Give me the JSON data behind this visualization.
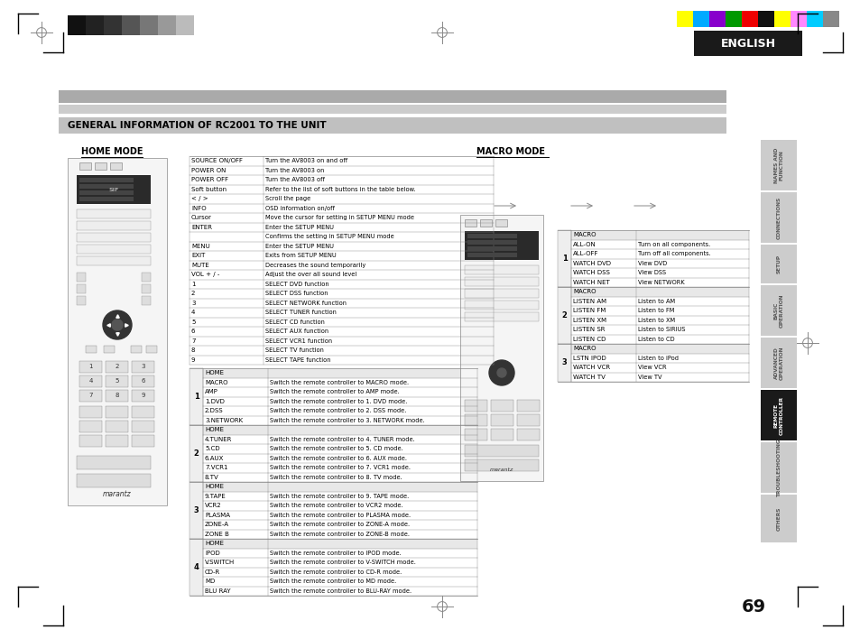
{
  "page_bg": "#ffffff",
  "title_text": "GENERAL INFORMATION OF RC2001 TO THE UNIT",
  "english_text": "ENGLISH",
  "english_text_color": "#ffffff",
  "english_box_color": "#1a1a1a",
  "page_number": "69",
  "tabs": [
    {
      "label": "NAMES AND\nFUNCTION",
      "active": false
    },
    {
      "label": "CONNECTIONS",
      "active": false
    },
    {
      "label": "SETUP",
      "active": false
    },
    {
      "label": "BASIC\nOPERATION",
      "active": false
    },
    {
      "label": "ADVANCED\nOPERATION",
      "active": false
    },
    {
      "label": "REMOTE\nCONTROLLER",
      "active": true
    },
    {
      "label": "TROUBLESHOOTING",
      "active": false
    },
    {
      "label": "OTHERS",
      "active": false
    }
  ],
  "tab_active_bg": "#1a1a1a",
  "tab_inactive_bg": "#cccccc",
  "tab_active_text": "#ffffff",
  "tab_inactive_text": "#555555",
  "color_strip_top_right": [
    "#ffff00",
    "#00aaff",
    "#8800cc",
    "#009900",
    "#ee0000",
    "#111111",
    "#ffff00",
    "#ff88ff",
    "#00ccff",
    "#888888"
  ],
  "color_strip_top_left": [
    "#111111",
    "#222222",
    "#333333",
    "#555555",
    "#777777",
    "#999999",
    "#bbbbbb",
    "#ffffff"
  ],
  "home_mode_label": "HOME MODE",
  "macro_mode_label": "MACRO MODE",
  "home_table_rows": [
    [
      "SOURCE ON/OFF",
      "Turn the AV8003 on and off"
    ],
    [
      "POWER ON",
      "Turn the AV8003 on"
    ],
    [
      "POWER OFF",
      "Turn the AV8003 off"
    ],
    [
      "Soft button",
      "Refer to the list of soft buttons in the table below."
    ],
    [
      "< / >",
      "Scroll the page"
    ],
    [
      "INFO",
      "OSD information on/off"
    ],
    [
      "Cursor",
      "Move the cursor for setting in SETUP MENU mode"
    ],
    [
      "ENTER",
      "Enter the SETUP MENU"
    ],
    [
      "",
      "Confirms the setting in SETUP MENU mode"
    ],
    [
      "MENU",
      "Enter the SETUP MENU"
    ],
    [
      "EXIT",
      "Exits from SETUP MENU"
    ],
    [
      "MUTE",
      "Decreases the sound temporarily"
    ],
    [
      "VOL + / -",
      "Adjust the over all sound level"
    ],
    [
      "1",
      "SELECT DVD function"
    ],
    [
      "2",
      "SELECT DSS function"
    ],
    [
      "3",
      "SELECT NETWORK function"
    ],
    [
      "4",
      "SELECT TUNER function"
    ],
    [
      "5",
      "SELECT CD function"
    ],
    [
      "6",
      "SELECT AUX function"
    ],
    [
      "7",
      "SELECT VCR1 function"
    ],
    [
      "8",
      "SELECT TV function"
    ],
    [
      "9",
      "SELECT TAPE function"
    ]
  ],
  "group_table_rows": [
    {
      "group": "1",
      "rows": [
        [
          "HOME",
          ""
        ],
        [
          "MACRO",
          "Switch the remote controller to MACRO mode."
        ],
        [
          "AMP",
          "Switch the remote controller to AMP mode."
        ],
        [
          "1.DVD",
          "Switch the remote controller to 1. DVD mode."
        ],
        [
          "2.DSS",
          "Switch the remote controller to 2. DSS mode."
        ],
        [
          "3.NETWORK",
          "Switch the remote controller to 3. NETWORK mode."
        ]
      ]
    },
    {
      "group": "2",
      "rows": [
        [
          "HOME",
          ""
        ],
        [
          "4.TUNER",
          "Switch the remote controller to 4. TUNER mode."
        ],
        [
          "5.CD",
          "Switch the remote controller to 5. CD mode."
        ],
        [
          "6.AUX",
          "Switch the remote controller to 6. AUX mode."
        ],
        [
          "7.VCR1",
          "Switch the remote controller to 7. VCR1 mode."
        ],
        [
          "8.TV",
          "Switch the remote controller to 8. TV mode."
        ]
      ]
    },
    {
      "group": "3",
      "rows": [
        [
          "HOME",
          ""
        ],
        [
          "9.TAPE",
          "Switch the remote controller to 9. TAPE mode."
        ],
        [
          "VCR2",
          "Switch the remote controller to VCR2 mode."
        ],
        [
          "PLASMA",
          "Switch the remote controller to PLASMA mode."
        ],
        [
          "ZONE-A",
          "Switch the remote controller to ZONE-A mode."
        ],
        [
          "ZONE B",
          "Switch the remote controller to ZONE-B mode."
        ]
      ]
    },
    {
      "group": "4",
      "rows": [
        [
          "HOME",
          ""
        ],
        [
          "IPOD",
          "Switch the remote controller to IPOD mode."
        ],
        [
          "V.SWITCH",
          "Switch the remote controller to V-SWITCH mode."
        ],
        [
          "CD-R",
          "Switch the remote controller to CD-R mode."
        ],
        [
          "MD",
          "Switch the remote controller to MD mode."
        ],
        [
          "BLU RAY",
          "Switch the remote controller to BLU-RAY mode."
        ]
      ]
    }
  ],
  "macro_right_table": [
    {
      "group": "1",
      "rows": [
        [
          "MACRO",
          ""
        ],
        [
          "ALL-ON",
          "Turn on all components."
        ],
        [
          "ALL-OFF",
          "Turn off all components."
        ],
        [
          "WATCH DVD",
          "View DVD"
        ],
        [
          "WATCH DSS",
          "View DSS"
        ],
        [
          "WATCH NET",
          "View NETWORK"
        ]
      ]
    },
    {
      "group": "2",
      "rows": [
        [
          "MACRO",
          ""
        ],
        [
          "LISTEN AM",
          "Listen to AM"
        ],
        [
          "LISTEN FM",
          "Listen to FM"
        ],
        [
          "LISTEN XM",
          "Listen to XM"
        ],
        [
          "LISTEN SR",
          "Listen to SIRIUS"
        ],
        [
          "LISTEN CD",
          "Listen to CD"
        ]
      ]
    },
    {
      "group": "3",
      "rows": [
        [
          "MACRO",
          ""
        ],
        [
          "LSTN IPOD",
          "Listen to iPod"
        ],
        [
          "WATCH VCR",
          "View VCR"
        ],
        [
          "WATCH TV",
          "View TV"
        ]
      ]
    }
  ]
}
